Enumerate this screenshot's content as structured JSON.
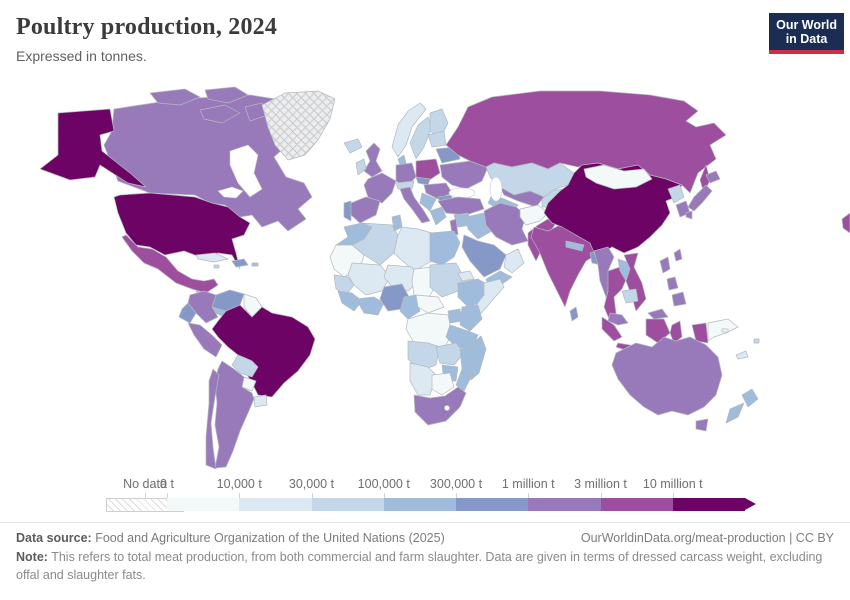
{
  "header": {
    "title": "Poultry production, 2024",
    "subtitle": "Expressed in tonnes.",
    "logo": {
      "line1": "Our World",
      "line2": "in Data"
    }
  },
  "legend": {
    "no_data_label": "No data"
  },
  "chart_data": {
    "type": "choropleth-map",
    "title": "Poultry production, 2024",
    "unit": "tonnes",
    "projection": "world",
    "legend_position": "bottom",
    "bins": [
      {
        "label": "0 t",
        "color": "#f2f9f8"
      },
      {
        "label": "10,000 t",
        "color": "#dce9f2"
      },
      {
        "label": "30,000 t",
        "color": "#c3d7e9"
      },
      {
        "label": "100,000 t",
        "color": "#a0bcdc"
      },
      {
        "label": "300,000 t",
        "color": "#8598c8"
      },
      {
        "label": "1 million t",
        "color": "#9879ba"
      },
      {
        "label": "3 million t",
        "color": "#9d4e9e"
      },
      {
        "label": "10 million t",
        "color": "#6d0365"
      }
    ],
    "no_data": {
      "label": "No data",
      "pattern": "diagonal-hatch",
      "hatch_color": "#dcdcdc"
    },
    "countries": {
      "canada": 5,
      "usa": 7,
      "greenland": -1,
      "mexico": 6,
      "guatemala": 2,
      "panama-costa-rica": 3,
      "cuba": 1,
      "hispaniola": 4,
      "jamaica": 2,
      "puerto-rico": 3,
      "colombia": 5,
      "venezuela": 4,
      "guyanas": 0,
      "ecuador": 4,
      "peru": 5,
      "brazil": 7,
      "bolivia": 2,
      "paraguay": 0,
      "uruguay": 1,
      "argentina": 5,
      "chile": 5,
      "iceland": 2,
      "norway": 1,
      "sweden": 2,
      "finland": 2,
      "uk": 5,
      "ireland": 2,
      "denmark": 3,
      "germany": 5,
      "poland": 6,
      "france": 5,
      "spain": 5,
      "portugal": 4,
      "italy": 5,
      "alpine": 2,
      "czech-slovakia": 4,
      "hungary-romania": 5,
      "balkans": 3,
      "greece": 3,
      "bulgaria": 4,
      "ukraine": 5,
      "belarus": 4,
      "baltics": 2,
      "russia": 6,
      "chukotka": 6,
      "kazakhstan": 2,
      "uzbekistan": 5,
      "turkmenistan": 3,
      "kyrgyz-tajik": 2,
      "turkey": 5,
      "syria": 3,
      "iraq": 3,
      "iran": 5,
      "afghanistan": 0,
      "pakistan": 6,
      "israel-jordan": 5,
      "saudi-arabia": 4,
      "yemen": 3,
      "oman": 1,
      "morocco": 3,
      "algeria": 2,
      "tunisia": 3,
      "libya": 1,
      "egypt": 3,
      "mauritania": 0,
      "mali": 1,
      "niger": 1,
      "chad": 0,
      "sudan": 2,
      "eritrea": 1,
      "ethiopia": 3,
      "somalia": 1,
      "senegal": 2,
      "guinea": 3,
      "ivory-ghana": 3,
      "nigeria": 4,
      "cameroon": 3,
      "central-african-republic": 0,
      "drc": 0,
      "uganda": 3,
      "kenya": 3,
      "tanzania": 3,
      "angola": 2,
      "zambia": 2,
      "mozambique": 3,
      "zimbabwe": 3,
      "namibia": 1,
      "botswana": 0,
      "south-africa": 5,
      "madagascar": 3,
      "india": 6,
      "sri-lanka": 4,
      "nepal": 3,
      "bangladesh": 4,
      "china": 7,
      "mongolia": 0,
      "north-korea": 2,
      "south-korea": 5,
      "japan": 5,
      "taiwan": 5,
      "myanmar": 5,
      "thailand": 6,
      "laos": 3,
      "vietnam": 6,
      "cambodia": 2,
      "malaysia": 5,
      "malaysia-borneo": 5,
      "indonesia": 6,
      "philippines": 5,
      "papua-new-guinea": 0,
      "australia": 5,
      "new-zealand": 3,
      "fiji": 2,
      "new-caledonia": 1,
      "solomon-islands": 0
    }
  },
  "footer": {
    "source_label": "Data source:",
    "source": "Food and Agriculture Organization of the United Nations (2025)",
    "link": "OurWorldinData.org/meat-production | CC BY",
    "note_label": "Note:",
    "note": "This refers to total meat production, from both commercial and farm slaughter. Data are given in terms of dressed carcass weight, excluding offal and slaughter fats."
  }
}
